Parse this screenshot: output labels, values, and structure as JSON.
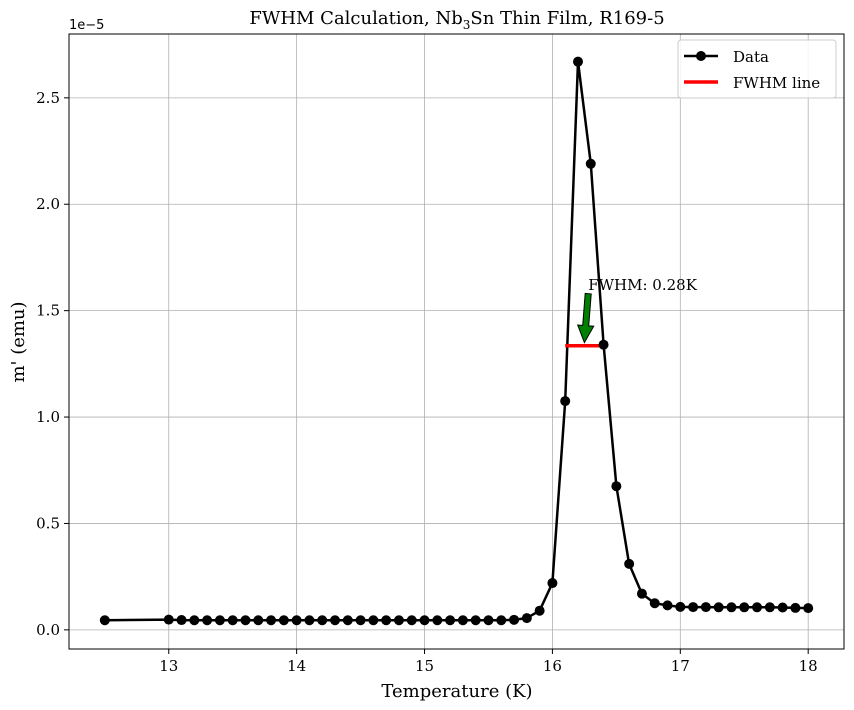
{
  "chart_data": {
    "type": "line",
    "title_parts": {
      "before": "FWHM Calculation, Nb",
      "sub": "3",
      "after": "Sn Thin Film, R169-5"
    },
    "xlabel": "Temperature (K)",
    "ylabel": "m' (emu)",
    "y_offset_text": "1e−5",
    "y_scale": 1e-05,
    "xlim": [
      12.22,
      18.28
    ],
    "ylim": [
      -0.09,
      2.8
    ],
    "x_ticks": [
      13,
      14,
      15,
      16,
      17,
      18
    ],
    "x_tick_labels": [
      "13",
      "14",
      "15",
      "16",
      "17",
      "18"
    ],
    "y_ticks": [
      0.0,
      0.5,
      1.0,
      1.5,
      2.0,
      2.5
    ],
    "y_tick_labels": [
      "0.0",
      "0.5",
      "1.0",
      "1.5",
      "2.0",
      "2.5"
    ],
    "grid": true,
    "legend_position": "top-right",
    "series": [
      {
        "name": "Data",
        "color": "#000000",
        "marker": "circle",
        "x": [
          12.5,
          13.0,
          13.1,
          13.2,
          13.3,
          13.4,
          13.5,
          13.6,
          13.7,
          13.8,
          13.9,
          14.0,
          14.1,
          14.2,
          14.3,
          14.4,
          14.5,
          14.6,
          14.7,
          14.8,
          14.9,
          15.0,
          15.1,
          15.2,
          15.3,
          15.4,
          15.5,
          15.6,
          15.7,
          15.8,
          15.9,
          16.0,
          16.1,
          16.2,
          16.3,
          16.4,
          16.5,
          16.6,
          16.7,
          16.8,
          16.9,
          17.0,
          17.1,
          17.2,
          17.3,
          17.4,
          17.5,
          17.6,
          17.7,
          17.8,
          17.9,
          18.0
        ],
        "y": [
          0.045,
          0.048,
          0.046,
          0.045,
          0.045,
          0.045,
          0.045,
          0.045,
          0.045,
          0.045,
          0.045,
          0.045,
          0.045,
          0.045,
          0.045,
          0.045,
          0.045,
          0.045,
          0.045,
          0.045,
          0.045,
          0.045,
          0.045,
          0.045,
          0.045,
          0.045,
          0.045,
          0.045,
          0.047,
          0.055,
          0.09,
          0.22,
          1.075,
          2.67,
          2.19,
          1.34,
          0.675,
          0.31,
          0.17,
          0.125,
          0.115,
          0.108,
          0.107,
          0.107,
          0.106,
          0.106,
          0.106,
          0.106,
          0.106,
          0.105,
          0.103,
          0.102
        ]
      },
      {
        "name": "FWHM line",
        "color": "#ff0000",
        "x": [
          16.1,
          16.4
        ],
        "y": [
          1.335,
          1.335
        ]
      }
    ],
    "annotation": {
      "text": "FWHM: 0.28K",
      "text_xy": [
        16.28,
        1.62
      ],
      "arrow_from": [
        16.28,
        1.58
      ],
      "arrow_to": [
        16.25,
        1.35
      ],
      "arrow_color": "#008000"
    }
  }
}
